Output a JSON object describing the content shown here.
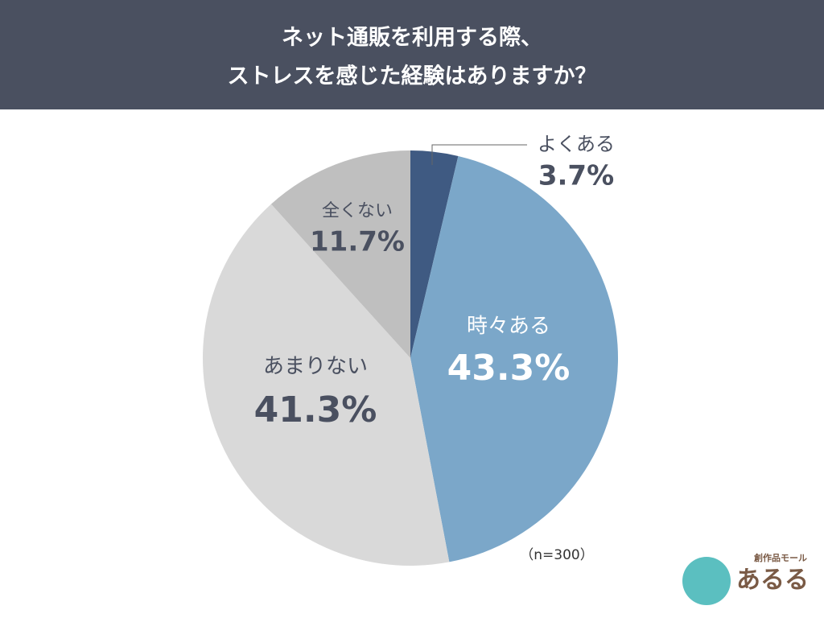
{
  "chart_data": {
    "type": "pie",
    "title_lines": [
      "ネット通販を利用する際、",
      "ストレスを感じた経験はありますか？"
    ],
    "categories": [
      "よくある",
      "時々ある",
      "あまりない",
      "全くない"
    ],
    "values": [
      3.7,
      43.3,
      41.3,
      11.7
    ],
    "value_labels": [
      "3.7%",
      "43.3%",
      "41.3%",
      "11.7%"
    ],
    "colors": [
      "#3f5a82",
      "#7ba7c9",
      "#d9d9d9",
      "#bfbfbf"
    ],
    "annotation": "（n=300）"
  },
  "logo": {
    "tagline": "創作品モール",
    "name": "あるる"
  }
}
